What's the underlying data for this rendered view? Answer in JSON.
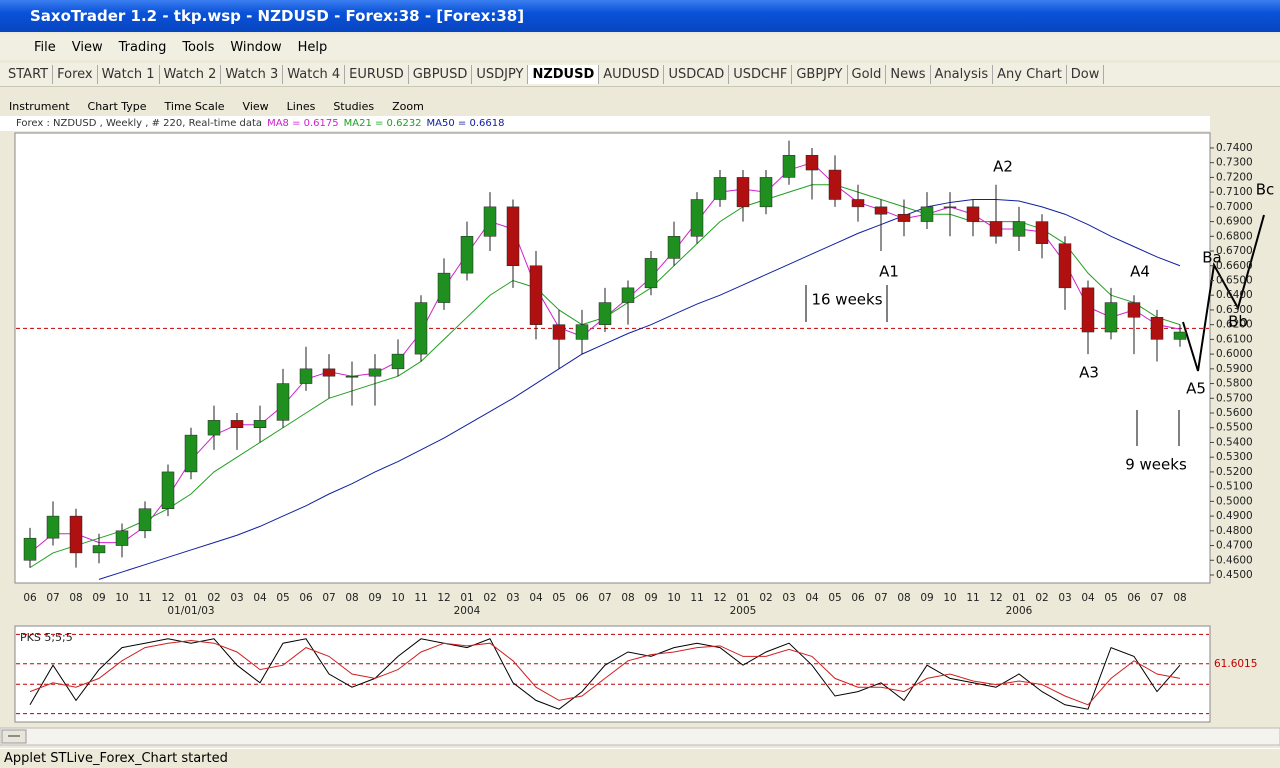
{
  "window": {
    "title": "SaxoTrader 1.2 - tkp.wsp - NZDUSD - Forex:38 - [Forex:38]",
    "menu": [
      "File",
      "View",
      "Trading",
      "Tools",
      "Window",
      "Help"
    ],
    "tabs": [
      "START",
      "Forex",
      "Watch 1",
      "Watch 2",
      "Watch 3",
      "Watch 4",
      "EURUSD",
      "GBPUSD",
      "USDJPY",
      "NZDUSD",
      "AUDUSD",
      "USDCAD",
      "USDCHF",
      "GBPJPY",
      "Gold",
      "News",
      "Analysis",
      "Any Chart",
      "Dow"
    ],
    "active_tab": "NZDUSD",
    "toolbar": [
      "Instrument",
      "Chart Type",
      "Time Scale",
      "View",
      "Lines",
      "Studies",
      "Zoom"
    ],
    "info": "Forex : NZDUSD , Weekly , # 220, Real-time data",
    "status": "Applet STLive_Forex_Chart started"
  },
  "chart_data": {
    "type": "candlestick",
    "up_color": "#1f8f1f",
    "down_color": "#b01010",
    "categories": [
      "06",
      "07",
      "08",
      "09",
      "10",
      "11",
      "12",
      "01",
      "02",
      "03",
      "04",
      "05",
      "06",
      "07",
      "08",
      "09",
      "10",
      "11",
      "12",
      "01",
      "02",
      "03",
      "04",
      "05",
      "06",
      "07",
      "08",
      "09",
      "10",
      "11",
      "12",
      "01",
      "02",
      "03",
      "04",
      "05",
      "06",
      "07",
      "08",
      "09",
      "10",
      "11",
      "12",
      "01",
      "02",
      "03",
      "04",
      "05",
      "06",
      "07",
      "08"
    ],
    "sub_labels": [
      null,
      null,
      null,
      null,
      null,
      null,
      null,
      "01/01/03",
      null,
      null,
      null,
      null,
      null,
      null,
      null,
      null,
      null,
      null,
      null,
      "2004",
      null,
      null,
      null,
      null,
      null,
      null,
      null,
      null,
      null,
      null,
      null,
      "2005",
      null,
      null,
      null,
      null,
      null,
      null,
      null,
      null,
      null,
      null,
      null,
      "2006",
      null,
      null,
      null,
      null,
      null,
      null,
      null
    ],
    "candles": [
      [
        0.46,
        0.482,
        0.455,
        0.475
      ],
      [
        0.475,
        0.5,
        0.47,
        0.49
      ],
      [
        0.49,
        0.495,
        0.455,
        0.465
      ],
      [
        0.465,
        0.478,
        0.458,
        0.47
      ],
      [
        0.47,
        0.485,
        0.462,
        0.48
      ],
      [
        0.48,
        0.5,
        0.475,
        0.495
      ],
      [
        0.495,
        0.525,
        0.49,
        0.52
      ],
      [
        0.52,
        0.55,
        0.515,
        0.545
      ],
      [
        0.545,
        0.565,
        0.535,
        0.555
      ],
      [
        0.555,
        0.56,
        0.535,
        0.55
      ],
      [
        0.55,
        0.565,
        0.54,
        0.555
      ],
      [
        0.555,
        0.59,
        0.55,
        0.58
      ],
      [
        0.58,
        0.605,
        0.575,
        0.59
      ],
      [
        0.59,
        0.6,
        0.57,
        0.585
      ],
      [
        0.585,
        0.595,
        0.565,
        0.585
      ],
      [
        0.585,
        0.6,
        0.565,
        0.59
      ],
      [
        0.59,
        0.61,
        0.585,
        0.6
      ],
      [
        0.6,
        0.64,
        0.595,
        0.635
      ],
      [
        0.635,
        0.665,
        0.63,
        0.655
      ],
      [
        0.655,
        0.69,
        0.65,
        0.68
      ],
      [
        0.68,
        0.71,
        0.67,
        0.7
      ],
      [
        0.7,
        0.705,
        0.645,
        0.66
      ],
      [
        0.66,
        0.67,
        0.61,
        0.62
      ],
      [
        0.62,
        0.63,
        0.59,
        0.61
      ],
      [
        0.61,
        0.63,
        0.6,
        0.62
      ],
      [
        0.62,
        0.645,
        0.615,
        0.635
      ],
      [
        0.635,
        0.65,
        0.62,
        0.645
      ],
      [
        0.645,
        0.67,
        0.64,
        0.665
      ],
      [
        0.665,
        0.69,
        0.66,
        0.68
      ],
      [
        0.68,
        0.71,
        0.675,
        0.705
      ],
      [
        0.705,
        0.725,
        0.7,
        0.72
      ],
      [
        0.72,
        0.725,
        0.69,
        0.7
      ],
      [
        0.7,
        0.725,
        0.695,
        0.72
      ],
      [
        0.72,
        0.745,
        0.715,
        0.735
      ],
      [
        0.735,
        0.74,
        0.705,
        0.725
      ],
      [
        0.725,
        0.735,
        0.7,
        0.705
      ],
      [
        0.705,
        0.715,
        0.69,
        0.7
      ],
      [
        0.7,
        0.705,
        0.67,
        0.695
      ],
      [
        0.695,
        0.705,
        0.68,
        0.69
      ],
      [
        0.69,
        0.71,
        0.685,
        0.7
      ],
      [
        0.7,
        0.71,
        0.68,
        0.7
      ],
      [
        0.7,
        0.705,
        0.68,
        0.69
      ],
      [
        0.69,
        0.715,
        0.675,
        0.68
      ],
      [
        0.68,
        0.7,
        0.67,
        0.69
      ],
      [
        0.69,
        0.695,
        0.665,
        0.675
      ],
      [
        0.675,
        0.68,
        0.63,
        0.645
      ],
      [
        0.645,
        0.65,
        0.6,
        0.615
      ],
      [
        0.615,
        0.645,
        0.61,
        0.635
      ],
      [
        0.635,
        0.64,
        0.6,
        0.625
      ],
      [
        0.625,
        0.63,
        0.595,
        0.61
      ],
      [
        0.61,
        0.62,
        0.605,
        0.615
      ]
    ],
    "series": [
      {
        "name": "MA8 = 0.6175",
        "color": "#d020d0",
        "values": [
          0.465,
          0.478,
          0.478,
          0.472,
          0.472,
          0.483,
          0.503,
          0.528,
          0.545,
          0.552,
          0.552,
          0.565,
          0.583,
          0.588,
          0.585,
          0.587,
          0.595,
          0.615,
          0.645,
          0.668,
          0.69,
          0.685,
          0.645,
          0.618,
          0.612,
          0.625,
          0.638,
          0.652,
          0.67,
          0.69,
          0.71,
          0.712,
          0.71,
          0.725,
          0.73,
          0.715,
          0.703,
          0.698,
          0.692,
          0.695,
          0.7,
          0.695,
          0.685,
          0.685,
          0.683,
          0.662,
          0.632,
          0.625,
          0.63,
          0.62,
          0.617
        ]
      },
      {
        "name": "MA21 = 0.6232",
        "color": "#20a020",
        "values": [
          0.455,
          0.465,
          0.47,
          0.475,
          0.48,
          0.487,
          0.495,
          0.505,
          0.52,
          0.53,
          0.54,
          0.55,
          0.56,
          0.57,
          0.575,
          0.58,
          0.585,
          0.595,
          0.61,
          0.625,
          0.64,
          0.65,
          0.645,
          0.63,
          0.62,
          0.625,
          0.635,
          0.645,
          0.66,
          0.675,
          0.69,
          0.7,
          0.705,
          0.71,
          0.715,
          0.715,
          0.71,
          0.705,
          0.7,
          0.695,
          0.695,
          0.69,
          0.69,
          0.69,
          0.685,
          0.675,
          0.655,
          0.64,
          0.635,
          0.625,
          0.62
        ]
      },
      {
        "name": "MA50 = 0.6618",
        "color": "#1020a0",
        "values": [
          null,
          null,
          null,
          0.447,
          0.452,
          0.457,
          0.462,
          0.467,
          0.472,
          0.477,
          0.483,
          0.49,
          0.497,
          0.505,
          0.512,
          0.52,
          0.527,
          0.535,
          0.543,
          0.552,
          0.561,
          0.57,
          0.58,
          0.59,
          0.6,
          0.607,
          0.614,
          0.62,
          0.627,
          0.634,
          0.64,
          0.647,
          0.654,
          0.661,
          0.668,
          0.675,
          0.682,
          0.688,
          0.694,
          0.7,
          0.703,
          0.705,
          0.705,
          0.704,
          0.7,
          0.695,
          0.688,
          0.68,
          0.673,
          0.666,
          0.66
        ]
      }
    ],
    "last_price": 0.6175,
    "last_color": "#c00000",
    "ylim": [
      0.4466,
      0.7488
    ],
    "yticks": [
      {
        "value": 0.45,
        "label": "0.4500"
      },
      {
        "value": 0.46,
        "label": "0.4600"
      },
      {
        "value": 0.47,
        "label": "0.4700"
      },
      {
        "value": 0.48,
        "label": "0.4800"
      },
      {
        "value": 0.49,
        "label": "0.4900"
      },
      {
        "value": 0.5,
        "label": "0.5000"
      },
      {
        "value": 0.51,
        "label": "0.5100"
      },
      {
        "value": 0.52,
        "label": "0.5200"
      },
      {
        "value": 0.53,
        "label": "0.5300"
      },
      {
        "value": 0.54,
        "label": "0.5400"
      },
      {
        "value": 0.55,
        "label": "0.5500"
      },
      {
        "value": 0.56,
        "label": "0.5600"
      },
      {
        "value": 0.57,
        "label": "0.5700"
      },
      {
        "value": 0.58,
        "label": "0.5800"
      },
      {
        "value": 0.59,
        "label": "0.5900"
      },
      {
        "value": 0.6,
        "label": "0.6000"
      },
      {
        "value": 0.61,
        "label": "0.6100"
      },
      {
        "value": 0.62,
        "label": "0.6200"
      },
      {
        "value": 0.63,
        "label": "0.6300"
      },
      {
        "value": 0.64,
        "label": "0.6400"
      },
      {
        "value": 0.65,
        "label": "0.6500"
      },
      {
        "value": 0.66,
        "label": "0.6600"
      },
      {
        "value": 0.67,
        "label": "0.6700"
      },
      {
        "value": 0.68,
        "label": "0.6800"
      },
      {
        "value": 0.69,
        "label": "0.6900"
      },
      {
        "value": 0.7,
        "label": "0.7000"
      },
      {
        "value": 0.71,
        "label": "0.7100"
      },
      {
        "value": 0.72,
        "label": "0.7200"
      },
      {
        "value": 0.73,
        "label": "0.7300"
      },
      {
        "value": 0.74,
        "label": "0.7400"
      }
    ],
    "annotations": [
      "A1",
      "A2",
      "A3",
      "A4",
      "A5",
      "Ba",
      "Bb",
      "Bc",
      "16 weeks",
      "9 weeks"
    ],
    "oscillator": {
      "title": "PKS 5;5;5",
      "ylim": [
        0,
        100
      ],
      "level_label": 61.6015,
      "levels": [
        95,
        38.4,
        5
      ],
      "series": [
        {
          "color": "#000000",
          "values": [
            15,
            60,
            20,
            55,
            80,
            85,
            90,
            85,
            90,
            60,
            40,
            85,
            90,
            50,
            35,
            45,
            70,
            90,
            85,
            80,
            90,
            40,
            20,
            10,
            30,
            60,
            75,
            70,
            80,
            85,
            80,
            60,
            75,
            85,
            60,
            25,
            30,
            40,
            20,
            60,
            45,
            40,
            35,
            50,
            30,
            15,
            10,
            80,
            70,
            30,
            60
          ]
        },
        {
          "color": "#d02020",
          "values": [
            30,
            40,
            35,
            45,
            65,
            80,
            85,
            88,
            85,
            75,
            55,
            60,
            80,
            70,
            50,
            45,
            55,
            75,
            85,
            82,
            85,
            65,
            35,
            20,
            25,
            45,
            65,
            72,
            75,
            80,
            82,
            70,
            70,
            78,
            70,
            45,
            35,
            35,
            30,
            45,
            50,
            42,
            38,
            42,
            38,
            25,
            15,
            45,
            65,
            50,
            45
          ]
        }
      ]
    }
  }
}
